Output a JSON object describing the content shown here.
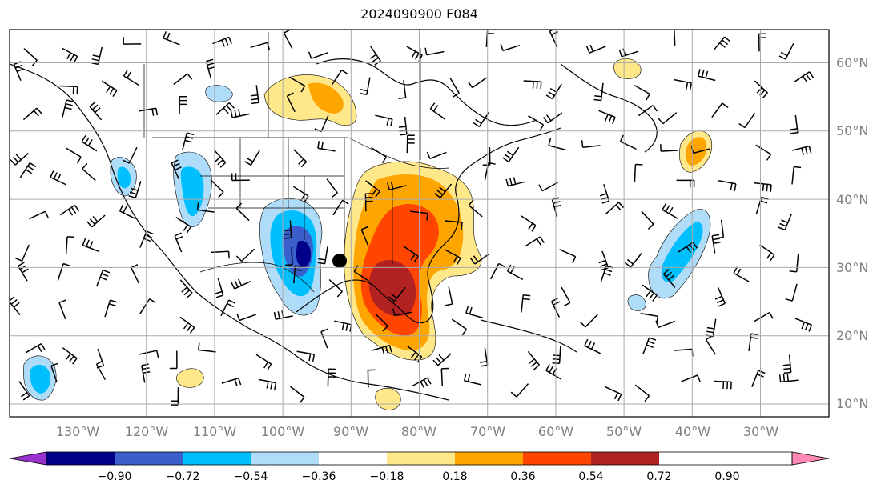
{
  "title": "2024090900 F084",
  "lon_labels": [
    "130°W",
    "120°W",
    "110°W",
    "100°W",
    "90°W",
    "80°W",
    "70°W",
    "60°W",
    "50°W",
    "40°W",
    "30°W"
  ],
  "lat_labels": [
    "60°N",
    "50°N",
    "40°N",
    "30°N",
    "20°N",
    "10°N"
  ],
  "colorbar": {
    "ticks": [
      "−0.90",
      "−0.72",
      "−0.54",
      "−0.36",
      "−0.18",
      "0.18",
      "0.36",
      "0.54",
      "0.72",
      "0.90"
    ],
    "colors": [
      "#9932cc",
      "#00008b",
      "#3a5fcd",
      "#00bfff",
      "#afdcf8",
      "#ffffff",
      "#ffe88a",
      "#ffa500",
      "#ff4500",
      "#b22222",
      "#ff88b4"
    ]
  },
  "chart_data": {
    "type": "heatmap",
    "title": "2024090900 F084",
    "projection": "PlateCarree",
    "lon_range": [
      -135,
      -15
    ],
    "lat_range": [
      8,
      65
    ],
    "grid": true,
    "overlays": [
      "coastlines",
      "country-borders",
      "us-state-borders",
      "wind-barbs",
      "marker"
    ],
    "marker": {
      "lon": -91.5,
      "lat": 31,
      "shape": "filled-circle"
    },
    "contour_levels": [
      -0.9,
      -0.72,
      -0.54,
      -0.36,
      -0.18,
      0.18,
      0.36,
      0.54,
      0.72,
      0.9
    ]
  }
}
